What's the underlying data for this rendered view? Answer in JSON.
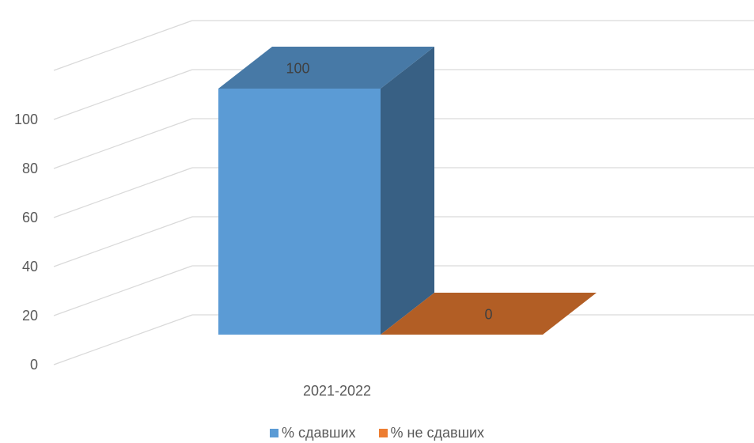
{
  "chart_data": {
    "type": "bar",
    "title": "",
    "xlabel": "",
    "ylabel": "",
    "categories": [
      "2021-2022"
    ],
    "yticks": [
      0,
      20,
      40,
      60,
      80,
      100
    ],
    "ylim": [
      0,
      100
    ],
    "series": [
      {
        "name": "% сдавших",
        "values": [
          100
        ],
        "color": "#5B9BD5"
      },
      {
        "name": "% не сдавших",
        "values": [
          0
        ],
        "color": "#ED7D31"
      }
    ],
    "data_labels": [
      "100",
      "0"
    ],
    "grid": true,
    "legend_position": "bottom",
    "style": "3d-column"
  }
}
